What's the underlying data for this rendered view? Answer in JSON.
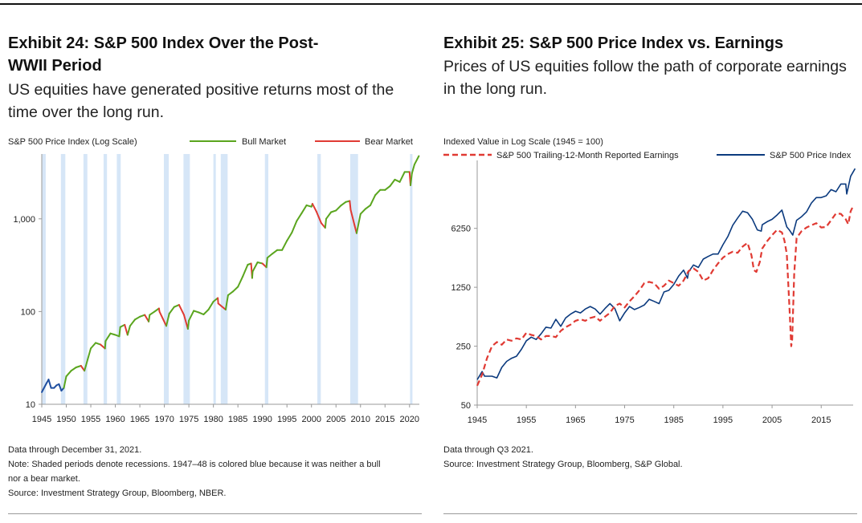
{
  "chart_data": [
    {
      "type": "line",
      "exhibit": "Exhibit 24: S&P 500 Index Over the Post-",
      "exhibit_line2": "WWII Period",
      "subtitle_line1": "US equities have generated positive returns most of the",
      "subtitle_line2": "time over the long run.",
      "ylabel": "S&P 500 Price Index (Log Scale)",
      "yscale": "log",
      "ylim": [
        10,
        5000
      ],
      "xlim": [
        1945,
        2022
      ],
      "y_ticks": [
        10,
        100,
        1000
      ],
      "y_tick_labels": [
        "10",
        "100",
        "1,000"
      ],
      "x_ticks": [
        1945,
        1950,
        1955,
        1960,
        1965,
        1970,
        1975,
        1980,
        1985,
        1990,
        1995,
        2000,
        2005,
        2010,
        2015,
        2020
      ],
      "x_tick_labels": [
        "1945",
        "1950",
        "1955",
        "1960",
        "1965",
        "1970",
        "1975",
        "1980",
        "1985",
        "1990",
        "1995",
        "2000",
        "2005",
        "2010",
        "2015",
        "2020"
      ],
      "legend": {
        "position": "top-right",
        "bull": "Bull Market",
        "bear": "Bear Market"
      },
      "colors": {
        "bull": "#5aa51e",
        "bear": "#e03a33",
        "neutral": "#1f4fa0",
        "recession": "#d6e6f7",
        "axis": "#999999"
      },
      "recessions": [
        [
          1945.1,
          1945.8
        ],
        [
          1948.9,
          1949.8
        ],
        [
          1953.5,
          1954.3
        ],
        [
          1957.6,
          1958.3
        ],
        [
          1960.3,
          1961.1
        ],
        [
          1969.9,
          1970.9
        ],
        [
          1973.9,
          1975.2
        ],
        [
          1980.0,
          1980.5
        ],
        [
          1981.5,
          1982.9
        ],
        [
          1990.5,
          1991.2
        ],
        [
          2001.2,
          2001.9
        ],
        [
          2007.9,
          2009.5
        ],
        [
          2020.1,
          2020.4
        ]
      ],
      "series": [
        {
          "name": "S&P 500 Price Index",
          "x": [
            1945,
            1946,
            1946.4,
            1946.9,
            1947.5,
            1948,
            1948.5,
            1949,
            1949.5,
            1950,
            1951,
            1952,
            1953,
            1953.7,
            1954,
            1955,
            1956,
            1957,
            1957.9,
            1958,
            1959,
            1960,
            1960.8,
            1961,
            1961.9,
            1962.5,
            1963,
            1964,
            1965,
            1966,
            1966.8,
            1967,
            1968,
            1968.9,
            1969,
            1970.4,
            1971,
            1972,
            1973,
            1974,
            1974.8,
            1975,
            1976,
            1977,
            1978,
            1979,
            1980,
            1980.9,
            1981,
            1982.5,
            1983,
            1984,
            1985,
            1986,
            1987,
            1987.7,
            1987.9,
            1988,
            1989,
            1990,
            1990.8,
            1991,
            1992,
            1993,
            1994,
            1995,
            1996,
            1997,
            1998,
            1999,
            2000,
            2000.2,
            2001,
            2002,
            2002.8,
            2003,
            2004,
            2005,
            2006,
            2007,
            2007.8,
            2008,
            2008.8,
            2009.2,
            2010,
            2011,
            2012,
            2013,
            2014,
            2015,
            2016,
            2017,
            2018,
            2019,
            2020,
            2020.2,
            2020.5,
            2021,
            2021.9
          ],
          "y": [
            13.5,
            17,
            18.5,
            15,
            15,
            16,
            16.5,
            14,
            15,
            20,
            23,
            25,
            26,
            23,
            26,
            40,
            46,
            44,
            40,
            48,
            58,
            56,
            54,
            68,
            72,
            56,
            70,
            82,
            88,
            92,
            78,
            92,
            100,
            108,
            100,
            70,
            95,
            112,
            118,
            92,
            65,
            80,
            102,
            98,
            93,
            105,
            128,
            140,
            122,
            105,
            150,
            165,
            185,
            240,
            320,
            330,
            230,
            270,
            340,
            330,
            300,
            380,
            420,
            460,
            460,
            580,
            710,
            950,
            1150,
            1400,
            1350,
            1450,
            1200,
            900,
            800,
            1000,
            1180,
            1230,
            1390,
            1520,
            1560,
            1250,
            850,
            700,
            1130,
            1280,
            1400,
            1800,
            2050,
            2050,
            2250,
            2650,
            2500,
            3200,
            3200,
            2300,
            3100,
            3850,
            4760
          ],
          "segment_regimes": [
            "neutral",
            "neutral",
            "neutral",
            "neutral",
            "neutral",
            "neutral",
            "neutral",
            "neutral",
            "bull",
            "bull",
            "bull",
            "bull",
            "bear",
            "bull",
            "bull",
            "bull",
            "bull",
            "bear",
            "bull",
            "bull",
            "bull",
            "bull",
            "bull",
            "bull",
            "bear",
            "bull",
            "bull",
            "bull",
            "bull",
            "bear",
            "bull",
            "bull",
            "bull",
            "bear",
            "bear",
            "bull",
            "bull",
            "bull",
            "bear",
            "bear",
            "bull",
            "bull",
            "bull",
            "bull",
            "bull",
            "bull",
            "bull",
            "bear",
            "bear",
            "bull",
            "bull",
            "bull",
            "bull",
            "bull",
            "bull",
            "bear",
            "bull",
            "bull",
            "bull",
            "bear",
            "bull",
            "bull",
            "bull",
            "bull",
            "bull",
            "bull",
            "bull",
            "bull",
            "bull",
            "bull",
            "bull",
            "bear",
            "bear",
            "bear",
            "bull",
            "bull",
            "bull",
            "bull",
            "bull",
            "bull",
            "bear",
            "bear",
            "bear",
            "bull",
            "bull",
            "bull",
            "bull",
            "bull",
            "bull",
            "bull",
            "bull",
            "bull",
            "bull",
            "bull",
            "bear",
            "bull",
            "bull",
            "bull"
          ]
        }
      ],
      "notes": [
        "Data through December 31, 2021.",
        "Note: Shaded periods denote recessions. 1947–48 is colored blue because it was neither a bull",
        "nor a bear market.",
        "Source: Investment Strategy Group, Bloomberg, NBER."
      ]
    },
    {
      "type": "line",
      "exhibit": "Exhibit 25: S&P 500 Price Index vs. Earnings",
      "subtitle_line1": "Prices of US equities follow the path of corporate earnings",
      "subtitle_line2": "in the long run.",
      "ylabel": "Indexed Value in Log Scale (1945 = 100)",
      "yscale": "log",
      "ylim": [
        50,
        40000
      ],
      "xlim": [
        1945,
        2021.5
      ],
      "y_ticks": [
        50,
        250,
        1250,
        6250
      ],
      "y_tick_labels": [
        "50",
        "250",
        "1250",
        "6250"
      ],
      "x_ticks": [
        1945,
        1955,
        1965,
        1975,
        1985,
        1995,
        2005,
        2015
      ],
      "x_tick_labels": [
        "1945",
        "1955",
        "1965",
        "1975",
        "1985",
        "1995",
        "2005",
        "2015"
      ],
      "legend": {
        "position": "top",
        "earnings": "S&P 500 Trailing-12-Month Reported Earnings",
        "price": "S&P 500 Price Index"
      },
      "colors": {
        "earnings": "#e03a33",
        "price": "#0b3a7e",
        "axis": "#999999"
      },
      "series": [
        {
          "name": "S&P 500 Trailing-12-Month Reported Earnings",
          "x": [
            1945,
            1946,
            1947,
            1948,
            1949,
            1950,
            1951,
            1952,
            1953,
            1954,
            1955,
            1956,
            1957,
            1958,
            1959,
            1960,
            1961,
            1962,
            1963,
            1964,
            1965,
            1966,
            1967,
            1968,
            1969,
            1970,
            1971,
            1972,
            1973,
            1974,
            1975,
            1976,
            1977,
            1978,
            1979,
            1980,
            1981,
            1982,
            1983,
            1984,
            1985,
            1986,
            1987,
            1988,
            1989,
            1990,
            1991,
            1992,
            1993,
            1994,
            1995,
            1996,
            1997,
            1998,
            1999,
            2000,
            2000.8,
            2001.3,
            2001.8,
            2002.5,
            2003,
            2004,
            2005,
            2006,
            2007,
            2007.5,
            2008,
            2008.6,
            2008.9,
            2009.1,
            2009.5,
            2010,
            2011,
            2012,
            2013,
            2014,
            2015,
            2016,
            2017,
            2018,
            2019,
            2020,
            2020.5,
            2021,
            2021.5
          ],
          "y": [
            85,
            115,
            180,
            250,
            280,
            260,
            300,
            290,
            310,
            300,
            360,
            340,
            330,
            300,
            330,
            330,
            320,
            380,
            420,
            450,
            500,
            520,
            500,
            540,
            560,
            500,
            560,
            620,
            750,
            800,
            720,
            850,
            980,
            1150,
            1400,
            1450,
            1400,
            1200,
            1300,
            1500,
            1400,
            1300,
            1500,
            1950,
            2100,
            1900,
            1500,
            1600,
            2000,
            2400,
            2800,
            3100,
            3300,
            3200,
            3800,
            4200,
            3000,
            2000,
            1900,
            2500,
            3600,
            4400,
            5200,
            6000,
            5600,
            4500,
            3100,
            600,
            250,
            300,
            1800,
            4800,
            5800,
            6400,
            6800,
            7200,
            6400,
            6500,
            7800,
            9400,
            9300,
            8000,
            7000,
            10000,
            11500
          ]
        },
        {
          "name": "S&P 500 Price Index",
          "x": [
            1945,
            1946,
            1946.5,
            1947,
            1948,
            1949,
            1950,
            1951,
            1952,
            1953,
            1954,
            1955,
            1956,
            1957,
            1958,
            1959,
            1960,
            1961,
            1962,
            1963,
            1964,
            1965,
            1966,
            1967,
            1968,
            1969,
            1970,
            1971,
            1972,
            1973,
            1974,
            1975,
            1976,
            1977,
            1978,
            1979,
            1980,
            1981,
            1982,
            1983,
            1984,
            1985,
            1986,
            1987,
            1987.8,
            1988,
            1989,
            1990,
            1991,
            1992,
            1993,
            1994,
            1995,
            1996,
            1997,
            1998,
            1999,
            2000,
            2001,
            2002,
            2002.8,
            2003,
            2004,
            2005,
            2006,
            2007,
            2008,
            2008.5,
            2009.2,
            2010,
            2011,
            2012,
            2013,
            2014,
            2015,
            2016,
            2017,
            2018,
            2019,
            2020,
            2020.2,
            2021,
            2021.9
          ],
          "y": [
            100,
            125,
            110,
            110,
            110,
            105,
            140,
            165,
            180,
            190,
            230,
            290,
            320,
            300,
            350,
            420,
            410,
            520,
            430,
            540,
            600,
            650,
            620,
            690,
            740,
            690,
            600,
            700,
            800,
            700,
            500,
            620,
            740,
            680,
            720,
            770,
            900,
            850,
            800,
            1100,
            1150,
            1350,
            1700,
            2000,
            1600,
            1900,
            2300,
            2150,
            2700,
            2900,
            3100,
            3100,
            4000,
            5000,
            6800,
            8300,
            10000,
            9600,
            8000,
            6000,
            5800,
            6900,
            7500,
            8000,
            9000,
            10300,
            6500,
            6000,
            5200,
            7800,
            8600,
            9800,
            12500,
            14500,
            14500,
            15200,
            18000,
            17000,
            21000,
            21000,
            16000,
            26000,
            32000
          ]
        }
      ],
      "notes": [
        "Data through Q3 2021.",
        "Source: Investment Strategy Group, Bloomberg, S&P Global."
      ]
    }
  ]
}
